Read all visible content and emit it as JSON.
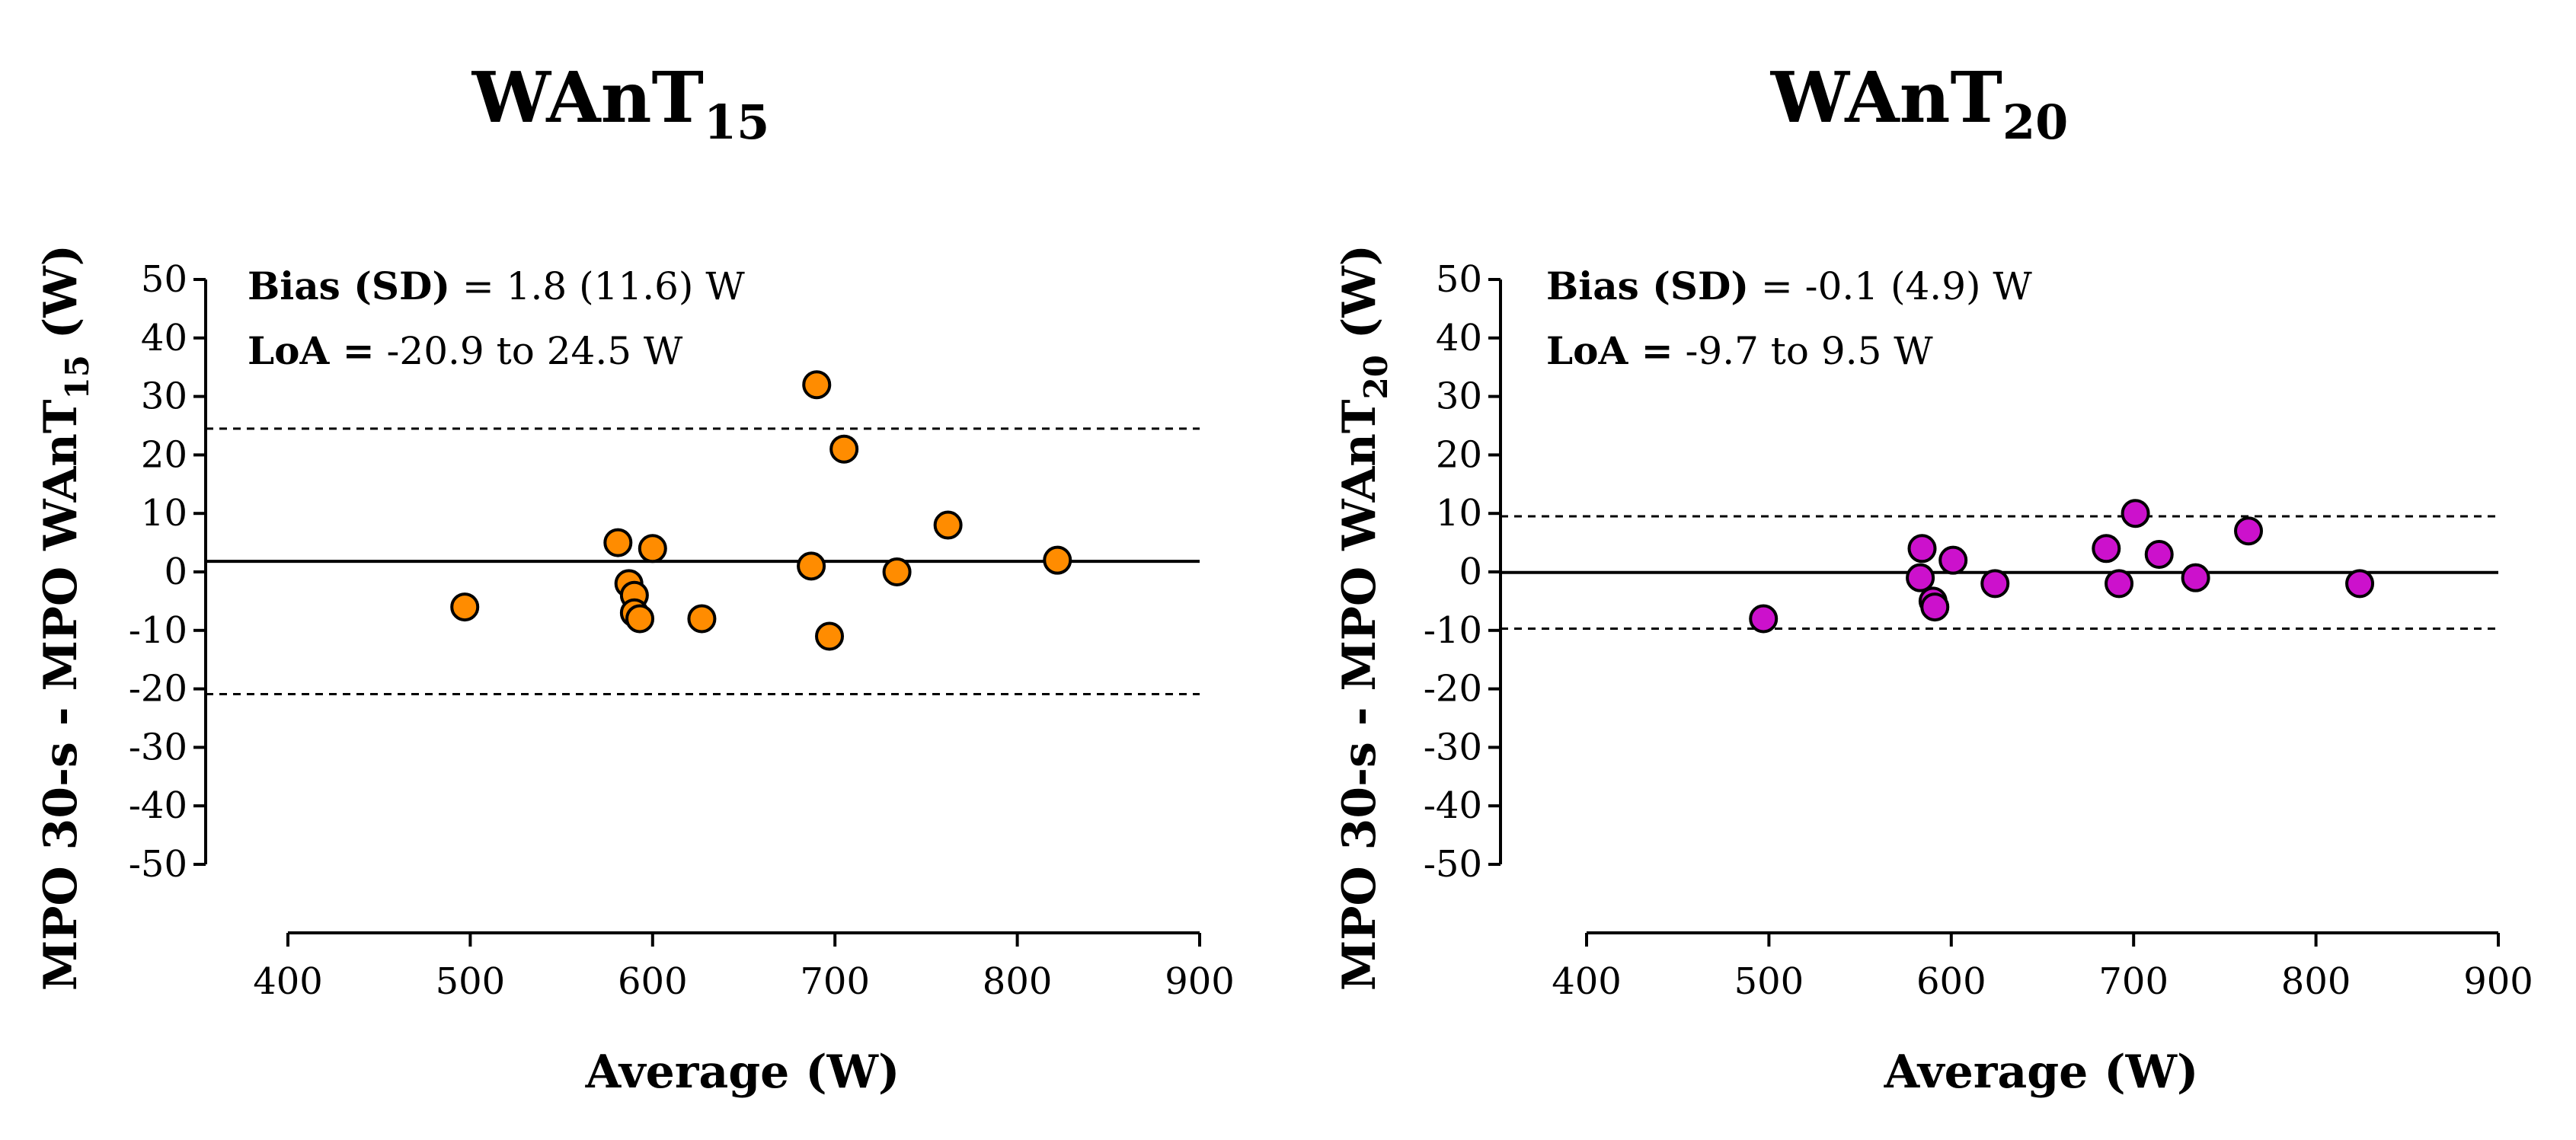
{
  "chart_data": [
    {
      "type": "scatter",
      "title": "WAnT",
      "title_sub": "15",
      "xlabel": "Average (W)",
      "ylabel": "MPO 30-s - MPO WAnT",
      "ylabel_sub": "15",
      "ylabel_unit": " (W)",
      "xlim": [
        400,
        900
      ],
      "ylim": [
        -50,
        50
      ],
      "xticks": [
        "400",
        "500",
        "600",
        "700",
        "800",
        "900"
      ],
      "yticks": [
        "50",
        "40",
        "30",
        "20",
        "10",
        "0",
        "-10",
        "-20",
        "-30",
        "-40",
        "-50"
      ],
      "color": "#ff8c00",
      "bias": 1.8,
      "loa_lower": -20.9,
      "loa_upper": 24.5,
      "annotation": {
        "bias_label": "Bias (SD)",
        "bias_value": " = 1.8 (11.6) W",
        "loa_label": "LoA =",
        "loa_value": " -20.9 to 24.5 W"
      },
      "points": [
        {
          "x": 497,
          "y": -6
        },
        {
          "x": 581,
          "y": 5
        },
        {
          "x": 587,
          "y": -2
        },
        {
          "x": 590,
          "y": -4
        },
        {
          "x": 590,
          "y": -7
        },
        {
          "x": 593,
          "y": -8
        },
        {
          "x": 600,
          "y": 4
        },
        {
          "x": 627,
          "y": -8
        },
        {
          "x": 687,
          "y": 1
        },
        {
          "x": 690,
          "y": 32
        },
        {
          "x": 697,
          "y": -11
        },
        {
          "x": 705,
          "y": 21
        },
        {
          "x": 734,
          "y": 0
        },
        {
          "x": 762,
          "y": 8
        },
        {
          "x": 822,
          "y": 2
        }
      ]
    },
    {
      "type": "scatter",
      "title": "WAnT",
      "title_sub": "20",
      "xlabel": "Average (W)",
      "ylabel": "MPO 30-s - MPO WAnT",
      "ylabel_sub": "20",
      "ylabel_unit": " (W)",
      "xlim": [
        400,
        900
      ],
      "ylim": [
        -50,
        50
      ],
      "xticks": [
        "400",
        "500",
        "600",
        "700",
        "800",
        "900"
      ],
      "yticks": [
        "50",
        "40",
        "30",
        "20",
        "10",
        "0",
        "-10",
        "-20",
        "-30",
        "-40",
        "-50"
      ],
      "color": "#cc11cc",
      "bias": -0.1,
      "loa_lower": -9.7,
      "loa_upper": 9.5,
      "annotation": {
        "bias_label": "Bias (SD)",
        "bias_value": " = -0.1 (4.9) W",
        "loa_label": "LoA =",
        "loa_value": " -9.7 to 9.5 W"
      },
      "points": [
        {
          "x": 497,
          "y": -8
        },
        {
          "x": 583,
          "y": -1
        },
        {
          "x": 584,
          "y": 4
        },
        {
          "x": 590,
          "y": -5
        },
        {
          "x": 591,
          "y": -6
        },
        {
          "x": 601,
          "y": 2
        },
        {
          "x": 624,
          "y": -2
        },
        {
          "x": 685,
          "y": 4
        },
        {
          "x": 692,
          "y": -2
        },
        {
          "x": 701,
          "y": 10
        },
        {
          "x": 714,
          "y": 3
        },
        {
          "x": 734,
          "y": -1
        },
        {
          "x": 763,
          "y": 7
        },
        {
          "x": 824,
          "y": -2
        }
      ]
    }
  ]
}
